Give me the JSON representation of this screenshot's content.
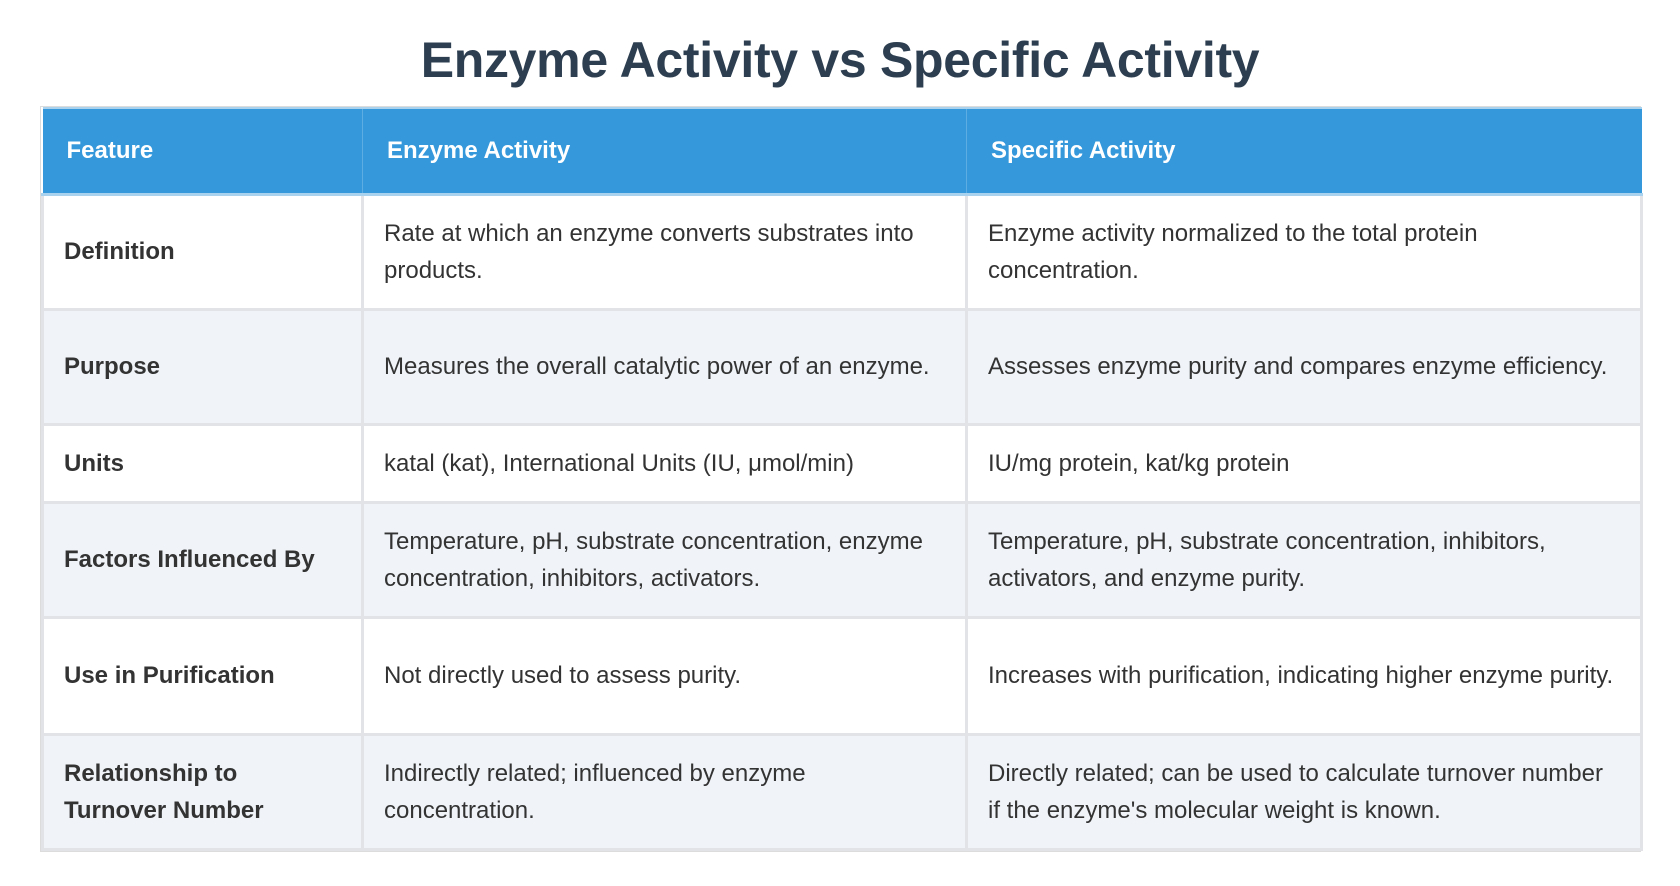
{
  "page": {
    "title": "Enzyme Activity vs Specific Activity"
  },
  "table": {
    "headers": [
      "Feature",
      "Enzyme Activity",
      "Specific Activity"
    ],
    "rows": [
      {
        "feature": "Definition",
        "enzyme_activity": "Rate at which an enzyme converts substrates into products.",
        "specific_activity": "Enzyme activity normalized to the total protein concentration."
      },
      {
        "feature": "Purpose",
        "enzyme_activity": "Measures the overall catalytic power of an enzyme.",
        "specific_activity": "Assesses enzyme purity and compares enzyme efficiency."
      },
      {
        "feature": "Units",
        "enzyme_activity": "katal (kat), International Units (IU, μmol/min)",
        "specific_activity": "IU/mg protein, kat/kg protein"
      },
      {
        "feature": "Factors Influenced By",
        "enzyme_activity": "Temperature, pH, substrate concentration, enzyme concentration, inhibitors, activators.",
        "specific_activity": "Temperature, pH, substrate concentration, inhibitors, activators, and enzyme purity."
      },
      {
        "feature": "Use in Purification",
        "enzyme_activity": "Not directly used to assess purity.",
        "specific_activity": "Increases with purification, indicating higher enzyme purity."
      },
      {
        "feature": "Relationship to Turnover Number",
        "enzyme_activity": "Indirectly related; influenced by enzyme concentration.",
        "specific_activity": "Directly related; can be used to calculate turnover number if the enzyme's molecular weight is known."
      }
    ]
  },
  "colors": {
    "title": "#2c3e50",
    "header_bg": "#3498db",
    "header_text": "#ffffff",
    "row_alt_bg": "#f0f4f9",
    "border": "#e1e3e6",
    "body_text": "#333333"
  }
}
